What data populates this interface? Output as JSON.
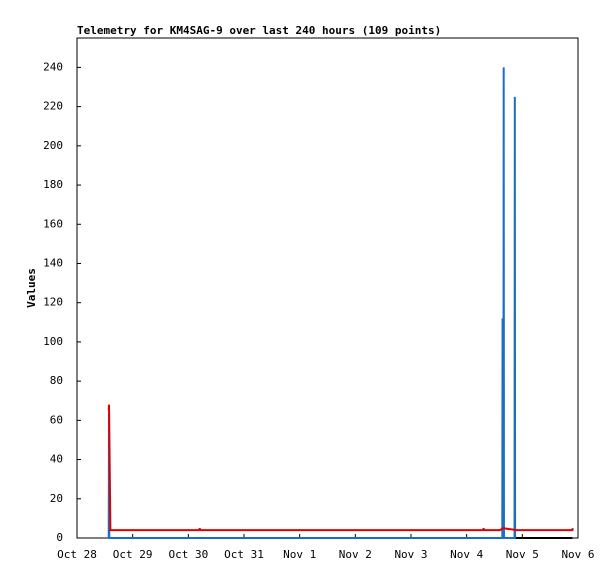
{
  "chart_data": {
    "type": "line",
    "title": "Telemetry for KM4SAG-9 over last 240 hours (109 points)",
    "y_label": "Values",
    "xlim": [
      0,
      9
    ],
    "xticks": [
      {
        "value": 0,
        "label": "Oct 28"
      },
      {
        "value": 1,
        "label": "Oct 29"
      },
      {
        "value": 2,
        "label": "Oct 30"
      },
      {
        "value": 3,
        "label": "Oct 31"
      },
      {
        "value": 4,
        "label": "Nov 1"
      },
      {
        "value": 5,
        "label": "Nov 2"
      },
      {
        "value": 6,
        "label": "Nov 3"
      },
      {
        "value": 7,
        "label": "Nov 4"
      },
      {
        "value": 8,
        "label": "Nov 5"
      },
      {
        "value": 9,
        "label": "Nov 6"
      }
    ],
    "ylim": [
      0,
      255
    ],
    "yticks": [
      0,
      20,
      40,
      60,
      80,
      100,
      120,
      140,
      160,
      180,
      200,
      220,
      240
    ],
    "series": [
      {
        "color": "#000000",
        "x": [
          0.57,
          8.9
        ],
        "values": [
          0,
          0
        ]
      },
      {
        "color": "#1a6fc4",
        "x": [
          0.57,
          0.575,
          0.58,
          7.64,
          7.645,
          7.65,
          7.66,
          7.665,
          7.67,
          7.86,
          7.865,
          7.87
        ],
        "values": [
          0,
          64,
          0,
          0,
          112,
          0,
          0,
          240,
          0,
          0,
          225,
          0
        ]
      },
      {
        "color": "#e00000",
        "x": [
          0.57,
          0.575,
          0.6,
          2.2,
          2.205,
          2.21,
          7.3,
          7.305,
          7.31,
          7.6,
          7.65,
          7.9,
          8.9,
          8.905
        ],
        "values": [
          65,
          68,
          4,
          4,
          5,
          4,
          4,
          5,
          4,
          4,
          5,
          4,
          4,
          5
        ]
      }
    ]
  }
}
